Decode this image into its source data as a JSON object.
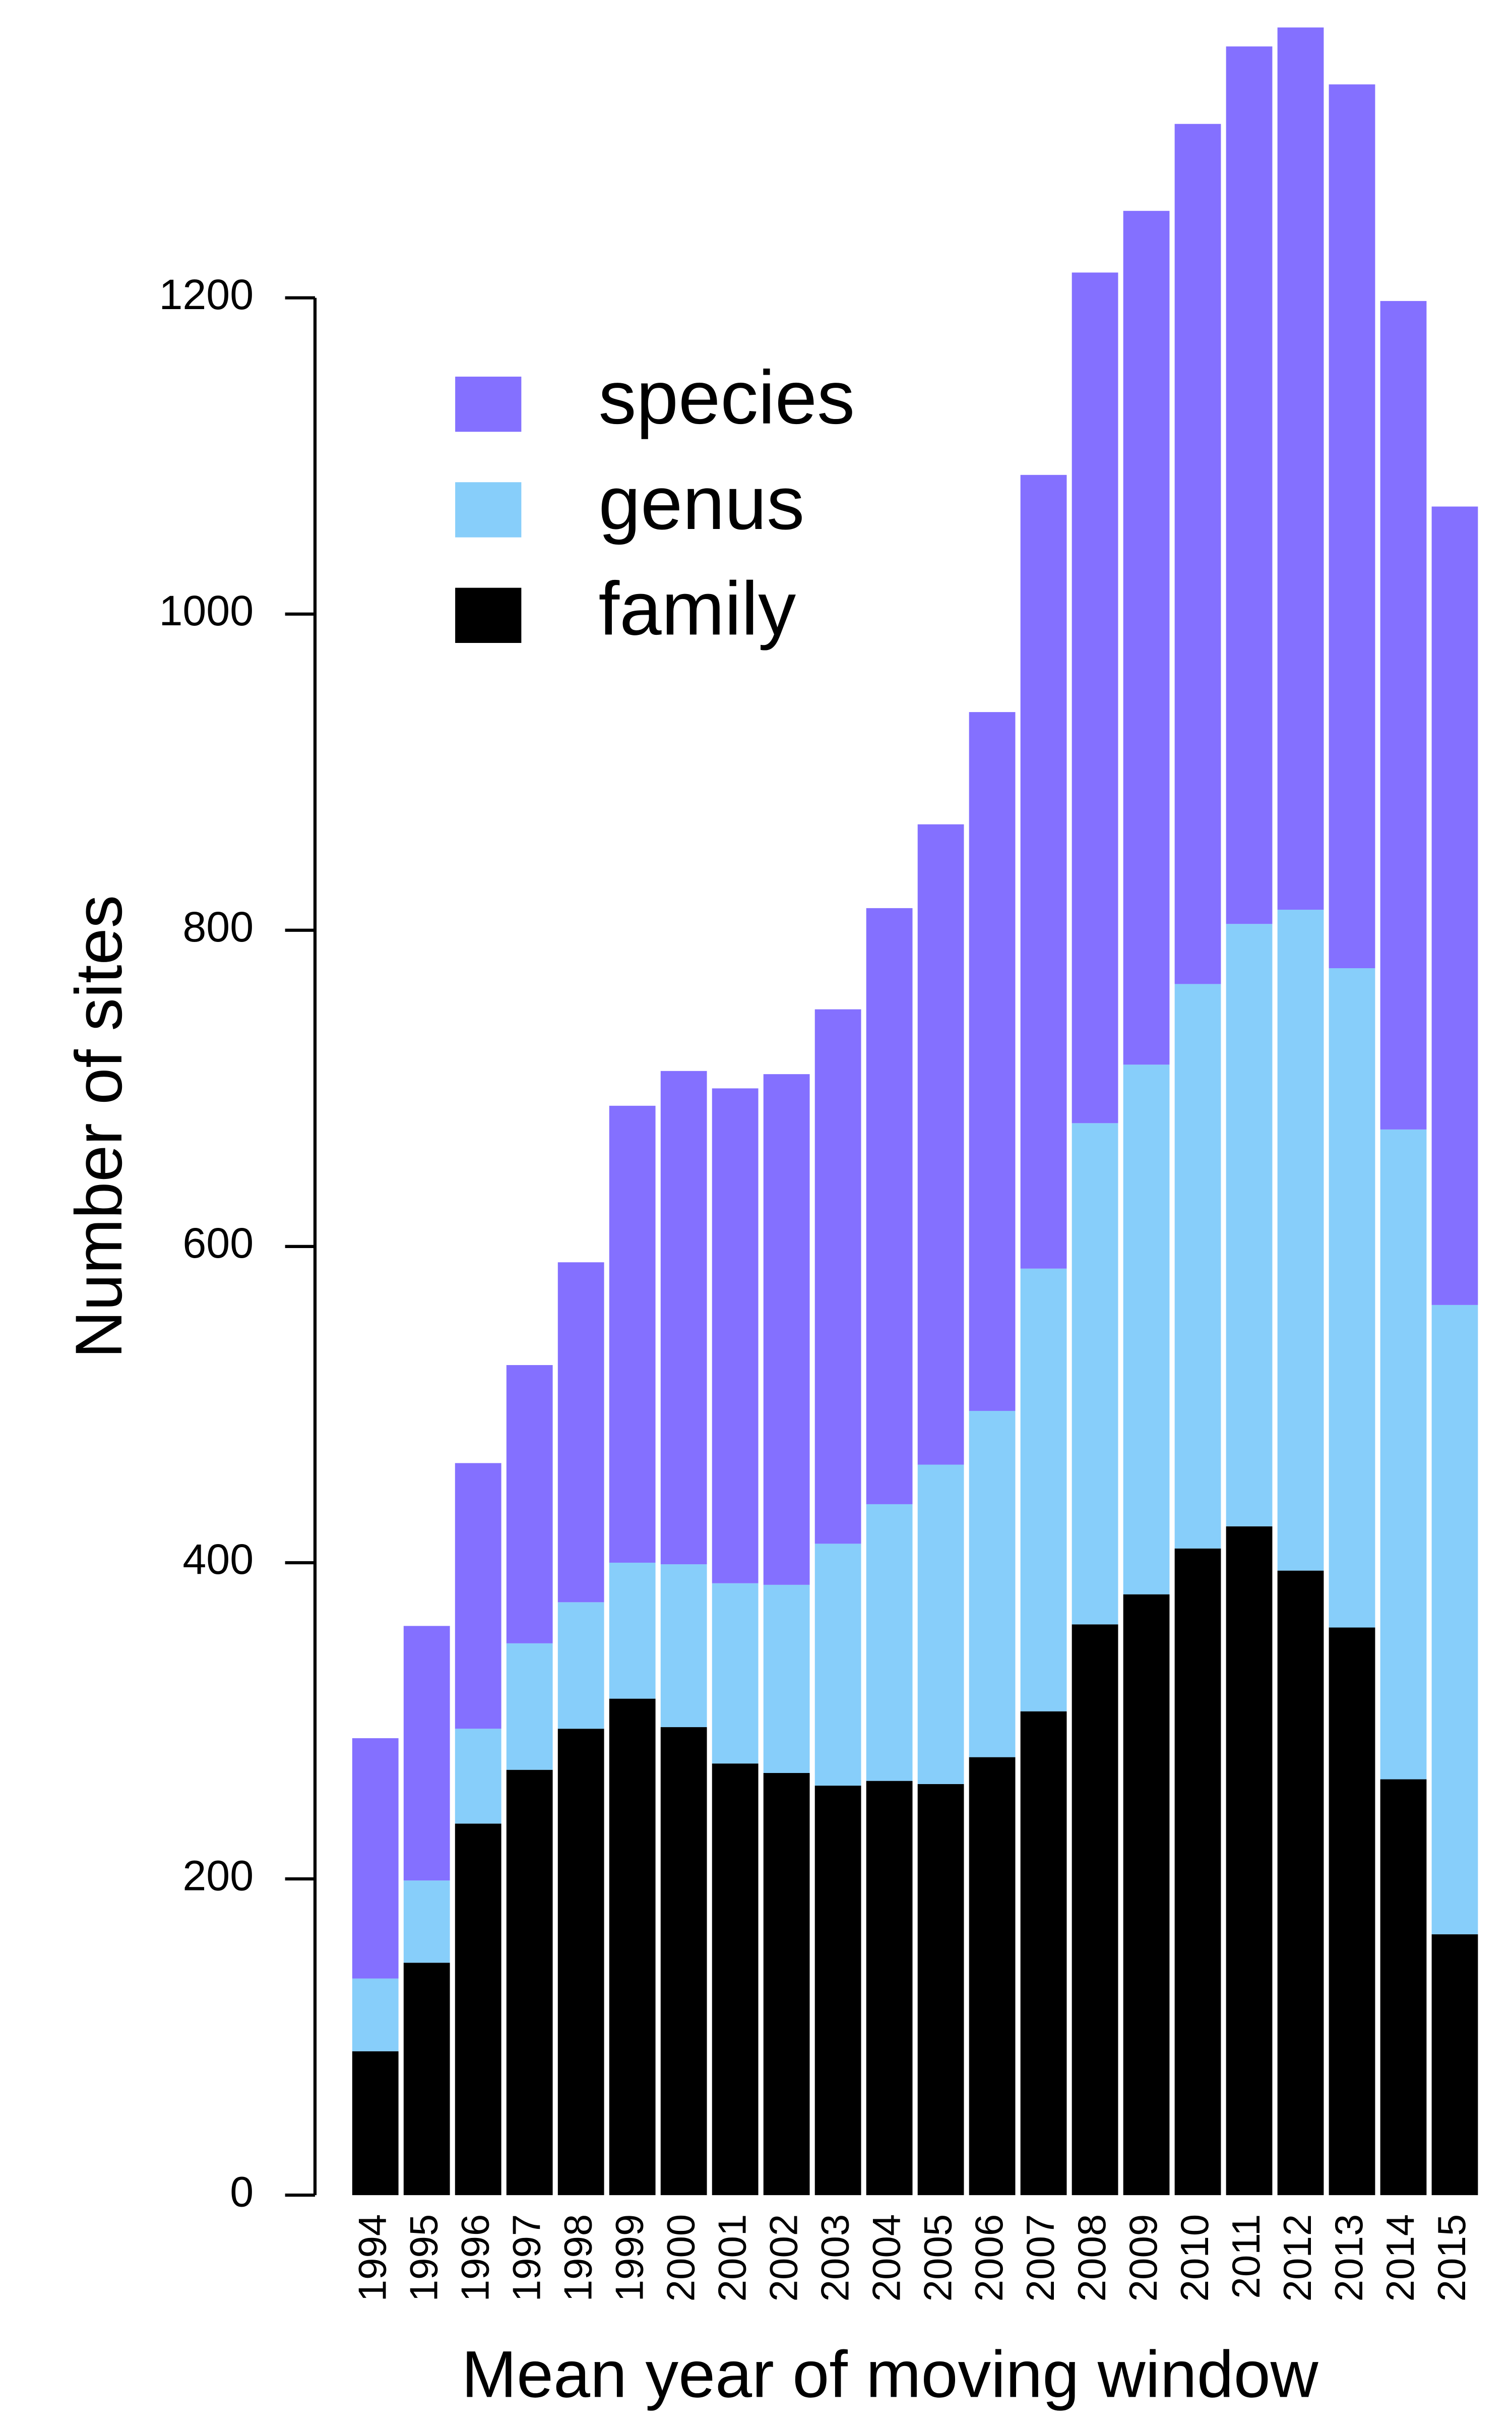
{
  "chart_data": {
    "type": "stacked_bar",
    "y_label": "Number of sites",
    "x_label": "Mean year of moving window",
    "categories": [
      "1994",
      "1995",
      "1996",
      "1997",
      "1998",
      "1999",
      "2000",
      "2001",
      "2002",
      "2003",
      "2004",
      "2005",
      "2006",
      "2007",
      "2008",
      "2009",
      "2010",
      "2011",
      "2012",
      "2013",
      "2014",
      "2015"
    ],
    "series": [
      {
        "name": "family",
        "color": "#000000",
        "values": [
          91,
          147,
          235,
          269,
          295,
          314,
          296,
          273,
          267,
          259,
          262,
          260,
          277,
          306,
          361,
          380,
          409,
          423,
          395,
          359,
          263,
          165
        ]
      },
      {
        "name": "genus",
        "color": "#87cefa",
        "values": [
          46,
          52,
          60,
          80,
          80,
          86,
          103,
          114,
          119,
          153,
          175,
          202,
          219,
          280,
          317,
          335,
          357,
          381,
          418,
          417,
          411,
          398
        ]
      },
      {
        "name": "species",
        "color": "#8470ff",
        "values": [
          152,
          161,
          168,
          176,
          215,
          289,
          312,
          313,
          323,
          338,
          377,
          405,
          442,
          502,
          538,
          540,
          544,
          555,
          558,
          559,
          524,
          505
        ]
      }
    ],
    "ylim": [
      0,
      1380
    ],
    "yticks": [
      0,
      200,
      400,
      600,
      800,
      1000,
      1200
    ],
    "grid": false
  }
}
